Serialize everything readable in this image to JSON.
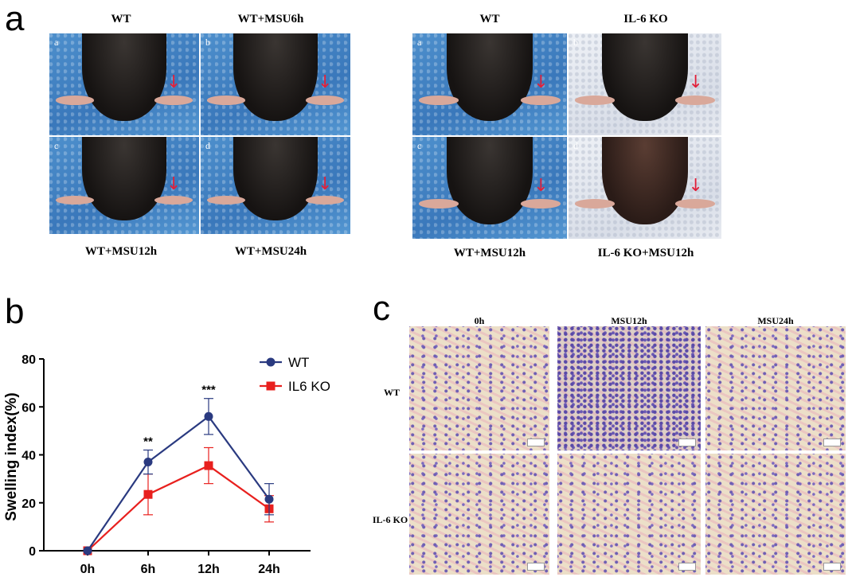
{
  "panels": {
    "a": "a",
    "b": "b",
    "c": "c"
  },
  "panel_a": {
    "left_group": {
      "top_labels": [
        "WT",
        "WT+MSU6h"
      ],
      "bottom_labels": [
        "WT+MSU12h",
        "WT+MSU24h"
      ],
      "sub_letters": [
        "a",
        "b",
        "c",
        "d"
      ]
    },
    "right_group": {
      "top_labels": [
        "WT",
        "IL-6 KO"
      ],
      "bottom_labels": [
        "WT+MSU12h",
        "IL-6 KO+MSU12h"
      ],
      "sub_letters": [
        "a",
        "b",
        "c",
        "d"
      ]
    },
    "arrow_glyph": "↓",
    "arrow_color": "#e0203a"
  },
  "panel_c": {
    "col_labels": [
      "0h",
      "MSU12h",
      "MSU24h"
    ],
    "row_labels": [
      "WT",
      "IL-6 KO"
    ]
  },
  "chart_data": {
    "type": "line",
    "categories": [
      "0h",
      "6h",
      "12h",
      "24h"
    ],
    "ylabel": "Swelling index(%)",
    "xlabel": "",
    "ylim": [
      0,
      80
    ],
    "yticks": [
      0,
      20,
      40,
      60,
      80
    ],
    "grid": false,
    "legend": "top-right",
    "series": [
      {
        "name": "WT",
        "values": [
          0,
          37,
          56,
          21.5
        ],
        "errors": [
          0,
          5,
          7.5,
          6.5
        ],
        "color": "#2a3a80",
        "marker": "circle"
      },
      {
        "name": "IL6 KO",
        "values": [
          0,
          23.5,
          35.5,
          17.5
        ],
        "errors": [
          0,
          8.5,
          7.5,
          5.5
        ],
        "color": "#e8201e",
        "marker": "square"
      }
    ],
    "significance": [
      {
        "category": "6h",
        "label": "**"
      },
      {
        "category": "12h",
        "label": "***"
      }
    ]
  }
}
